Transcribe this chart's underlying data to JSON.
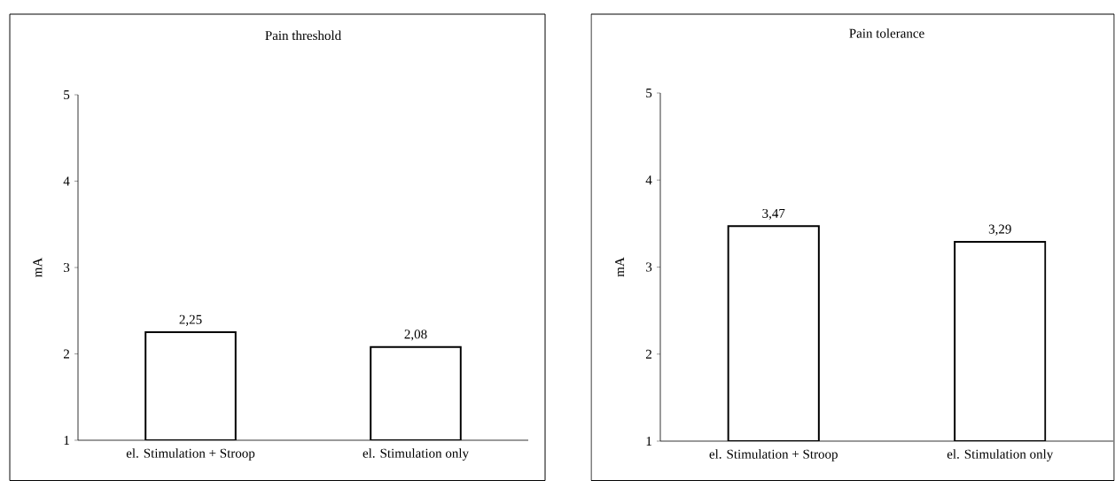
{
  "chart_data": [
    {
      "type": "bar",
      "title": "Pain threshold",
      "ylabel": "mA",
      "categories": [
        "el. Stimulation + Stroop",
        "el. Stimulation only"
      ],
      "values": [
        2.25,
        2.08
      ],
      "value_labels": [
        "2,25",
        "2,08"
      ],
      "color": "#ffffff",
      "ylim": [
        1,
        5
      ],
      "yticks": [
        1,
        2,
        3,
        4,
        5
      ],
      "grid": false
    },
    {
      "type": "bar",
      "title": "Pain tolerance",
      "ylabel": "mA",
      "categories": [
        "el. Stimulation + Stroop",
        "el. Stimulation only"
      ],
      "values": [
        3.47,
        3.29
      ],
      "value_labels": [
        "3,47",
        "3,29"
      ],
      "color": "#ffffff",
      "ylim": [
        1,
        5
      ],
      "yticks": [
        1,
        2,
        3,
        4,
        5
      ],
      "grid": false
    }
  ]
}
